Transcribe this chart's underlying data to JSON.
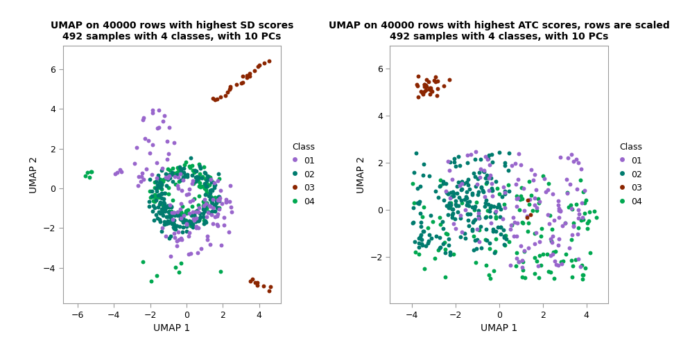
{
  "title1": "UMAP on 40000 rows with highest SD scores\n492 samples with 4 classes, with 10 PCs",
  "title2": "UMAP on 40000 rows with highest ATC scores, rows are scaled\n492 samples with 4 classes, with 10 PCs",
  "xlabel": "UMAP 1",
  "ylabel": "UMAP 2",
  "class_colors": {
    "01": "#9966CC",
    "02": "#007B6E",
    "03": "#8B2500",
    "04": "#00A850"
  },
  "legend_title": "Class",
  "plot1_xlim": [
    -6.8,
    5.2
  ],
  "plot1_ylim": [
    -5.8,
    7.2
  ],
  "plot1_xticks": [
    -6,
    -4,
    -2,
    0,
    2,
    4
  ],
  "plot1_yticks": [
    -4,
    -2,
    0,
    2,
    4,
    6
  ],
  "plot2_xlim": [
    -5.0,
    5.0
  ],
  "plot2_ylim": [
    -4.0,
    7.0
  ],
  "plot2_xticks": [
    -4,
    -2,
    0,
    2,
    4
  ],
  "plot2_yticks": [
    -2,
    0,
    2,
    4,
    6
  ],
  "markersize": 18,
  "alpha": 1.0
}
